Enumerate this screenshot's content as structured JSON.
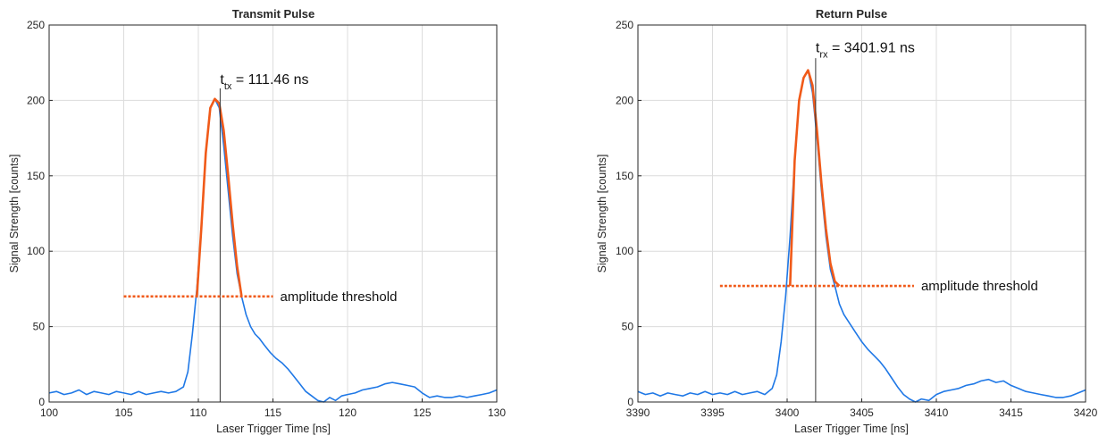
{
  "chart_data": [
    {
      "type": "line",
      "title": "Transmit Pulse",
      "xlabel": "Laser Trigger Time [ns]",
      "ylabel": "Signal Strength [counts]",
      "xlim": [
        100,
        130
      ],
      "ylim": [
        0,
        250
      ],
      "xticks": [
        "100",
        "105",
        "110",
        "115",
        "120",
        "125",
        "130"
      ],
      "yticks": [
        "0",
        "50",
        "100",
        "150",
        "200",
        "250"
      ],
      "grid": true,
      "colors": {
        "signal": "#1f78e6",
        "pulse": "#f05a19",
        "threshold": "#f05a19",
        "marker": "#333333"
      },
      "series": [
        {
          "role": "signal",
          "x": [
            100,
            100.5,
            101,
            101.5,
            102,
            102.5,
            103,
            103.5,
            104,
            104.5,
            105,
            105.5,
            106,
            106.5,
            107,
            107.5,
            108,
            108.5,
            109,
            109.3,
            109.6,
            109.9,
            110.2,
            110.5,
            110.8,
            111.1,
            111.4,
            111.7,
            112,
            112.3,
            112.6,
            112.9,
            113.2,
            113.5,
            113.8,
            114.1,
            114.4,
            114.8,
            115.2,
            115.6,
            116,
            116.4,
            116.8,
            117.2,
            117.6,
            118,
            118.4,
            118.8,
            119.2,
            119.6,
            120,
            120.5,
            121,
            121.5,
            122,
            122.5,
            123,
            123.5,
            124,
            124.5,
            125,
            125.5,
            126,
            126.5,
            127,
            127.5,
            128,
            128.5,
            129,
            129.5,
            130
          ],
          "y": [
            6,
            7,
            5,
            6,
            8,
            5,
            7,
            6,
            5,
            7,
            6,
            5,
            7,
            5,
            6,
            7,
            6,
            7,
            10,
            20,
            45,
            75,
            115,
            165,
            195,
            201,
            195,
            170,
            140,
            110,
            85,
            70,
            58,
            50,
            45,
            42,
            38,
            33,
            29,
            26,
            22,
            17,
            12,
            7,
            4,
            1,
            0,
            3,
            1,
            4,
            5,
            6,
            8,
            9,
            10,
            12,
            13,
            12,
            11,
            10,
            6,
            3,
            4,
            3,
            3,
            4,
            3,
            4,
            5,
            6,
            8
          ]
        },
        {
          "role": "pulse",
          "x": [
            109.9,
            110.2,
            110.5,
            110.8,
            111.1,
            111.4,
            111.7,
            112,
            112.3,
            112.6,
            112.9
          ],
          "y": [
            70,
            115,
            165,
            195,
            201,
            198,
            180,
            150,
            118,
            90,
            70
          ]
        }
      ],
      "threshold": {
        "label": "amplitude threshold",
        "value": 70,
        "x_range": [
          105,
          115
        ]
      },
      "marker": {
        "x": 111.46,
        "label_prefix": "t",
        "label_sub": "tx",
        "label_value": " = 111.46 ns"
      }
    },
    {
      "type": "line",
      "title": "Return Pulse",
      "xlabel": "Laser Trigger Time [ns]",
      "ylabel": "Signal Strength [counts]",
      "xlim": [
        3390,
        3420
      ],
      "ylim": [
        0,
        250
      ],
      "xticks": [
        "3390",
        "3395",
        "3400",
        "3405",
        "3410",
        "3415",
        "3420"
      ],
      "yticks": [
        "0",
        "50",
        "100",
        "150",
        "200",
        "250"
      ],
      "grid": true,
      "colors": {
        "signal": "#1f78e6",
        "pulse": "#f05a19",
        "threshold": "#f05a19",
        "marker": "#333333"
      },
      "series": [
        {
          "role": "signal",
          "x": [
            3390,
            3390.5,
            3391,
            3391.5,
            3392,
            3392.5,
            3393,
            3393.5,
            3394,
            3394.5,
            3395,
            3395.5,
            3396,
            3396.5,
            3397,
            3397.5,
            3398,
            3398.5,
            3399,
            3399.3,
            3399.6,
            3399.9,
            3400.2,
            3400.5,
            3400.8,
            3401.1,
            3401.4,
            3401.7,
            3402,
            3402.3,
            3402.6,
            3402.9,
            3403.2,
            3403.5,
            3403.8,
            3404.2,
            3404.6,
            3405,
            3405.4,
            3405.8,
            3406.2,
            3406.6,
            3407,
            3407.4,
            3407.8,
            3408.2,
            3408.6,
            3409,
            3409.5,
            3410,
            3410.5,
            3411,
            3411.5,
            3412,
            3412.5,
            3413,
            3413.5,
            3414,
            3414.5,
            3415,
            3415.5,
            3416,
            3416.5,
            3417,
            3417.5,
            3418,
            3418.5,
            3419,
            3419.5,
            3420
          ],
          "y": [
            7,
            5,
            6,
            4,
            6,
            5,
            4,
            6,
            5,
            7,
            5,
            6,
            5,
            7,
            5,
            6,
            7,
            5,
            9,
            18,
            40,
            70,
            110,
            160,
            200,
            215,
            220,
            205,
            175,
            140,
            110,
            88,
            77,
            65,
            58,
            52,
            46,
            40,
            35,
            31,
            27,
            22,
            16,
            10,
            5,
            2,
            0,
            2,
            1,
            5,
            7,
            8,
            9,
            11,
            12,
            14,
            15,
            13,
            14,
            11,
            9,
            7,
            6,
            5,
            4,
            3,
            3,
            4,
            6,
            8
          ]
        },
        {
          "role": "pulse",
          "x": [
            3400.2,
            3400.5,
            3400.8,
            3401.1,
            3401.4,
            3401.7,
            3402,
            3402.3,
            3402.6,
            3402.9,
            3403.2,
            3403.5
          ],
          "y": [
            77,
            160,
            200,
            215,
            220,
            210,
            180,
            145,
            115,
            92,
            80,
            77
          ]
        }
      ],
      "threshold": {
        "label": "amplitude threshold",
        "value": 77,
        "x_range": [
          3395.5,
          3408.5
        ]
      },
      "marker": {
        "x": 3401.91,
        "label_prefix": "t",
        "label_sub": "rx",
        "label_value": " = 3401.91 ns"
      }
    }
  ]
}
